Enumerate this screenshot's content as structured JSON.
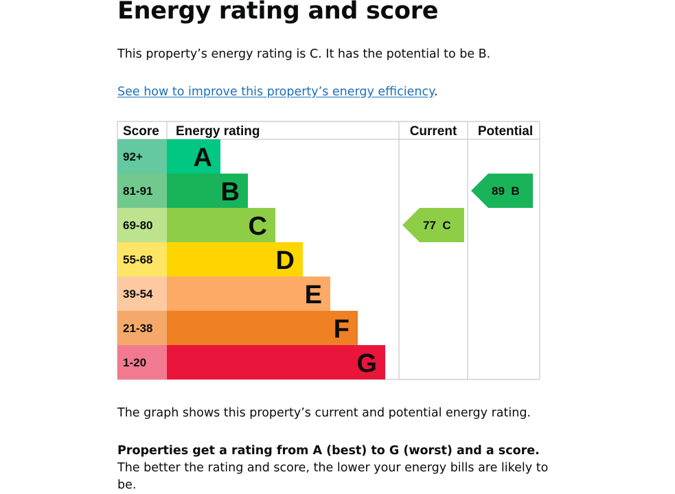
{
  "page": {
    "heading": "Energy rating and score",
    "intro": "This property’s energy rating is C. It has the potential to be B.",
    "improve_link": "See how to improve this property’s energy efficiency",
    "improve_suffix": ".",
    "graph_description": "The graph shows this property’s current and potential energy rating.",
    "rating_info_bold": "Properties get a rating from A (best) to G (worst) and a score.",
    "rating_info_rest": " The better the rating and score, the lower your energy bills are likely to be."
  },
  "chart_data": {
    "type": "bar",
    "headers": {
      "score": "Score",
      "rating": "Energy rating",
      "current": "Current",
      "potential": "Potential"
    },
    "bands": [
      {
        "letter": "A",
        "range": "92+",
        "color": "#00c781",
        "score_color": "#64c8a0"
      },
      {
        "letter": "B",
        "range": "81-91",
        "color": "#19b459",
        "score_color": "#72c98e"
      },
      {
        "letter": "C",
        "range": "69-80",
        "color": "#8dce46",
        "score_color": "#bde38f"
      },
      {
        "letter": "D",
        "range": "55-68",
        "color": "#ffd500",
        "score_color": "#ffe566"
      },
      {
        "letter": "E",
        "range": "39-54",
        "color": "#fcaa65",
        "score_color": "#fdc9a0"
      },
      {
        "letter": "F",
        "range": "21-38",
        "color": "#ef8023",
        "score_color": "#f4a96a"
      },
      {
        "letter": "G",
        "range": "1-20",
        "color": "#e9153b",
        "score_color": "#f27a90"
      }
    ],
    "current": {
      "score": 77,
      "letter": "C",
      "label": "77 C",
      "color": "#8dce46"
    },
    "potential": {
      "score": 89,
      "letter": "B",
      "label": "89 B",
      "color": "#19b459"
    }
  }
}
